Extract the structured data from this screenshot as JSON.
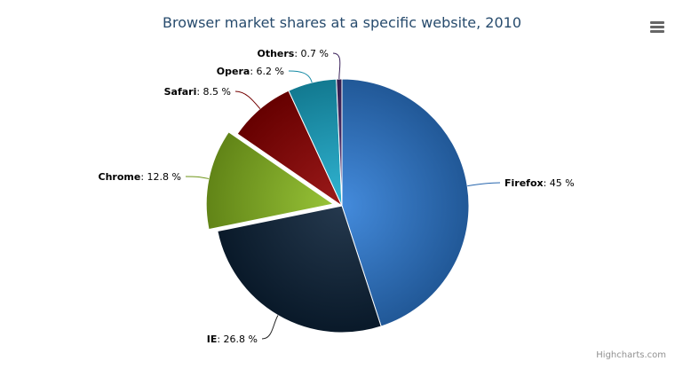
{
  "chart_data": {
    "type": "pie",
    "title": "Browser market shares at a specific website, 2010",
    "categories": [
      "Firefox",
      "IE",
      "Chrome",
      "Safari",
      "Opera",
      "Others"
    ],
    "values": [
      45.0,
      26.8,
      12.8,
      8.5,
      6.2,
      0.7
    ],
    "sliced": [
      "Chrome"
    ],
    "value_suffix": " %",
    "colors": [
      "#2f7ed8",
      "#0d233a",
      "#8bbc21",
      "#910000",
      "#1aadce",
      "#492970"
    ],
    "legend": "none"
  },
  "credits": "Highcharts.com",
  "menu_icon": "hamburger-menu-icon"
}
